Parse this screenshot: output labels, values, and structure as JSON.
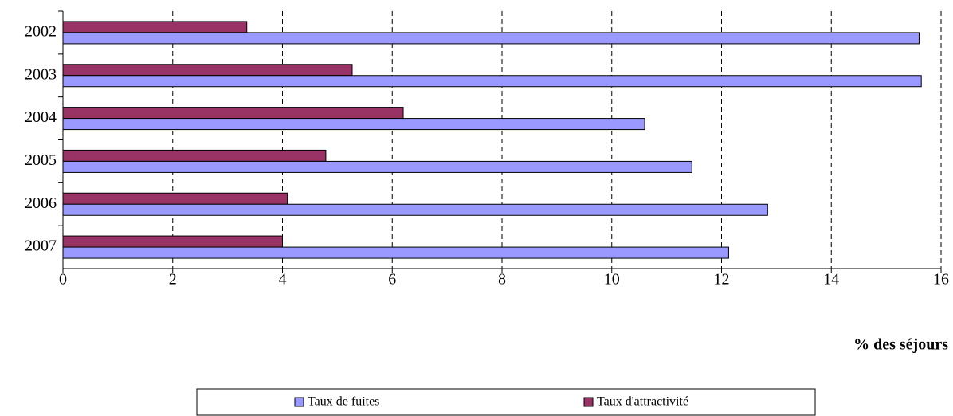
{
  "chart_data": {
    "type": "hbar",
    "x_label": "% des séjours",
    "categories": [
      "2002",
      "2003",
      "2004",
      "2005",
      "2006",
      "2007"
    ],
    "series": [
      {
        "name": "Taux de fuites",
        "color": "#9999ff",
        "values": [
          15.6,
          15.64,
          10.6,
          11.46,
          12.84,
          12.13
        ]
      },
      {
        "name": "Taux d'attractivité",
        "color": "#993366",
        "values": [
          3.35,
          5.27,
          6.2,
          4.79,
          4.09,
          4.0
        ]
      }
    ],
    "xlim": [
      0,
      16
    ],
    "xticks": [
      0,
      2,
      4,
      6,
      8,
      10,
      12,
      14,
      16
    ],
    "grid": true,
    "legend": "bottom"
  }
}
